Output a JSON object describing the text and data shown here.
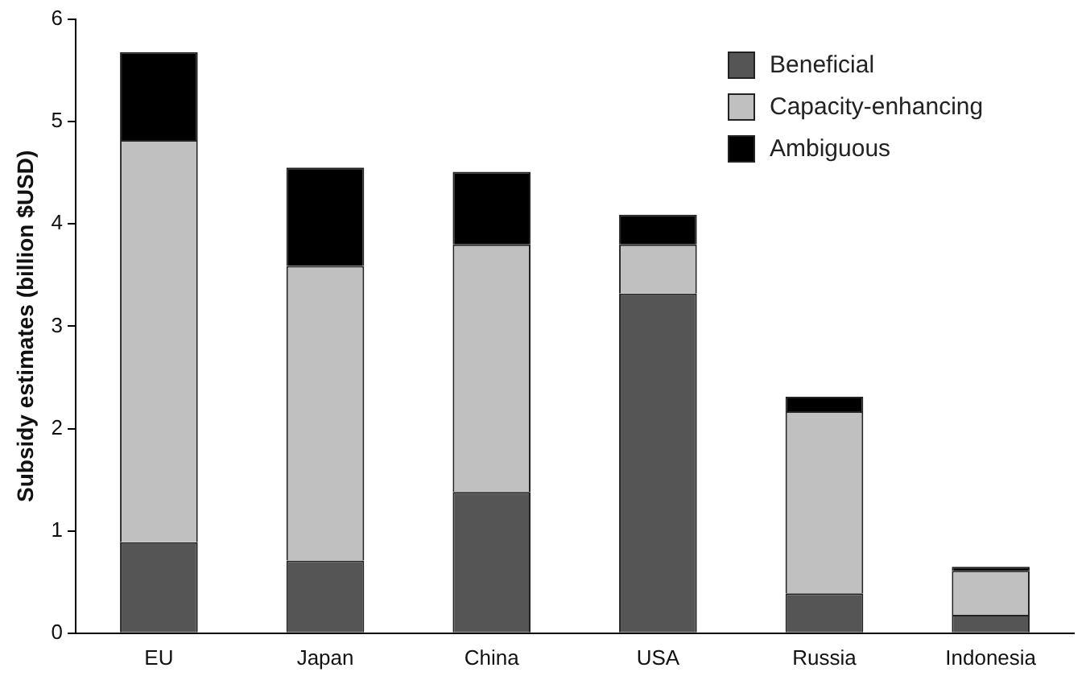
{
  "chart_data": {
    "type": "bar",
    "stacked": true,
    "ylabel": "Subsidy estimates (billion $USD)",
    "categories": [
      "EU",
      "Japan",
      "China",
      "USA",
      "Russia",
      "Indonesia"
    ],
    "series": [
      {
        "name": "Beneficial",
        "color": "#555555",
        "values": [
          0.89,
          0.71,
          1.38,
          3.32,
          0.39,
          0.18
        ]
      },
      {
        "name": "Capacity-enhancing",
        "color": "#c0c0c0",
        "values": [
          3.93,
          2.88,
          2.42,
          0.48,
          1.78,
          0.43
        ]
      },
      {
        "name": "Ambiguous",
        "color": "#000000",
        "values": [
          0.86,
          0.96,
          0.71,
          0.29,
          0.14,
          0.04
        ]
      }
    ],
    "ylim": [
      0,
      6
    ],
    "yticks": [
      0,
      1,
      2,
      3,
      4,
      5,
      6
    ],
    "grid": false,
    "legend": "top right"
  }
}
